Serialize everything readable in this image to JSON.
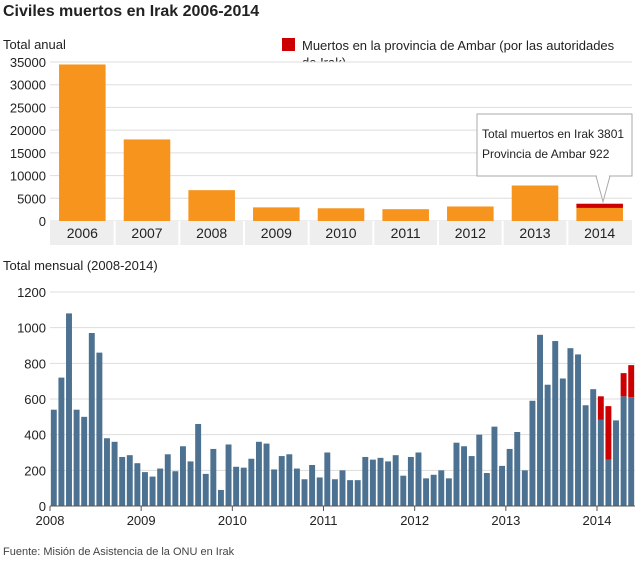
{
  "title": "Civiles muertos en Irak 2006-2014",
  "annual_subtitle": "Total anual",
  "monthly_subtitle": "Total mensual (2008-2014)",
  "legend_label": "Muertos en la provincia de Ambar (por las autoridades de Irak)",
  "tooltip": {
    "line1": "Total muertos en Irak 3801",
    "line2": "Provincia de Ambar 922"
  },
  "source": "Fuente: Misión de Asistencia de la ONU en Irak",
  "colors": {
    "orange": "#f7941d",
    "blue": "#4d7190",
    "red": "#cc0000",
    "grid": "#dddddd",
    "plot_bg": "#ffffff"
  },
  "chart_data": [
    {
      "type": "bar",
      "subtitle": "Total anual",
      "categories": [
        "2006",
        "2007",
        "2008",
        "2009",
        "2010",
        "2011",
        "2012",
        "2013",
        "2014"
      ],
      "series": [
        {
          "values": [
            34452,
            17955,
            6787,
            3000,
            2800,
            2600,
            3200,
            7818,
            2879
          ]
        },
        {
          "name": "Muertos en la provincia de Ambar (por las autoridades de Irak)",
          "values": [
            0,
            0,
            0,
            0,
            0,
            0,
            0,
            0,
            922
          ]
        }
      ],
      "stacked": true,
      "yticks": [
        0,
        5000,
        10000,
        15000,
        20000,
        25000,
        30000,
        35000
      ],
      "ylim": [
        0,
        35000
      ],
      "grid": true,
      "annotation": "Total muertos en Irak 3801 / Provincia de Ambar 922"
    },
    {
      "type": "bar",
      "subtitle": "Total mensual (2008-2014)",
      "xticks": [
        "2008",
        "2009",
        "2010",
        "2011",
        "2012",
        "2013",
        "2014"
      ],
      "series": [
        {
          "values": [
            540,
            720,
            1080,
            540,
            500,
            970,
            860,
            380,
            360,
            275,
            285,
            240,
            190,
            165,
            210,
            290,
            195,
            335,
            250,
            460,
            180,
            320,
            90,
            345,
            220,
            215,
            265,
            360,
            350,
            205,
            280,
            290,
            210,
            150,
            230,
            160,
            300,
            150,
            200,
            145,
            145,
            275,
            260,
            270,
            250,
            285,
            170,
            275,
            300,
            155,
            175,
            200,
            155,
            355,
            335,
            280,
            400,
            185,
            445,
            225,
            320,
            415,
            200,
            590,
            960,
            680,
            925,
            715,
            885,
            850,
            565,
            655,
            485,
            260,
            480,
            615,
            610
          ]
        },
        {
          "name": "Muertos en la provincia de Ambar (por las autoridades de Irak)",
          "values": [
            0,
            0,
            0,
            0,
            0,
            0,
            0,
            0,
            0,
            0,
            0,
            0,
            0,
            0,
            0,
            0,
            0,
            0,
            0,
            0,
            0,
            0,
            0,
            0,
            0,
            0,
            0,
            0,
            0,
            0,
            0,
            0,
            0,
            0,
            0,
            0,
            0,
            0,
            0,
            0,
            0,
            0,
            0,
            0,
            0,
            0,
            0,
            0,
            0,
            0,
            0,
            0,
            0,
            0,
            0,
            0,
            0,
            0,
            0,
            0,
            0,
            0,
            0,
            0,
            0,
            0,
            0,
            0,
            0,
            0,
            0,
            0,
            130,
            300,
            0,
            130,
            180
          ]
        }
      ],
      "stacked": true,
      "yticks": [
        0,
        200,
        400,
        600,
        800,
        1000,
        1200
      ],
      "ylim": [
        0,
        1200
      ],
      "grid": true
    }
  ]
}
